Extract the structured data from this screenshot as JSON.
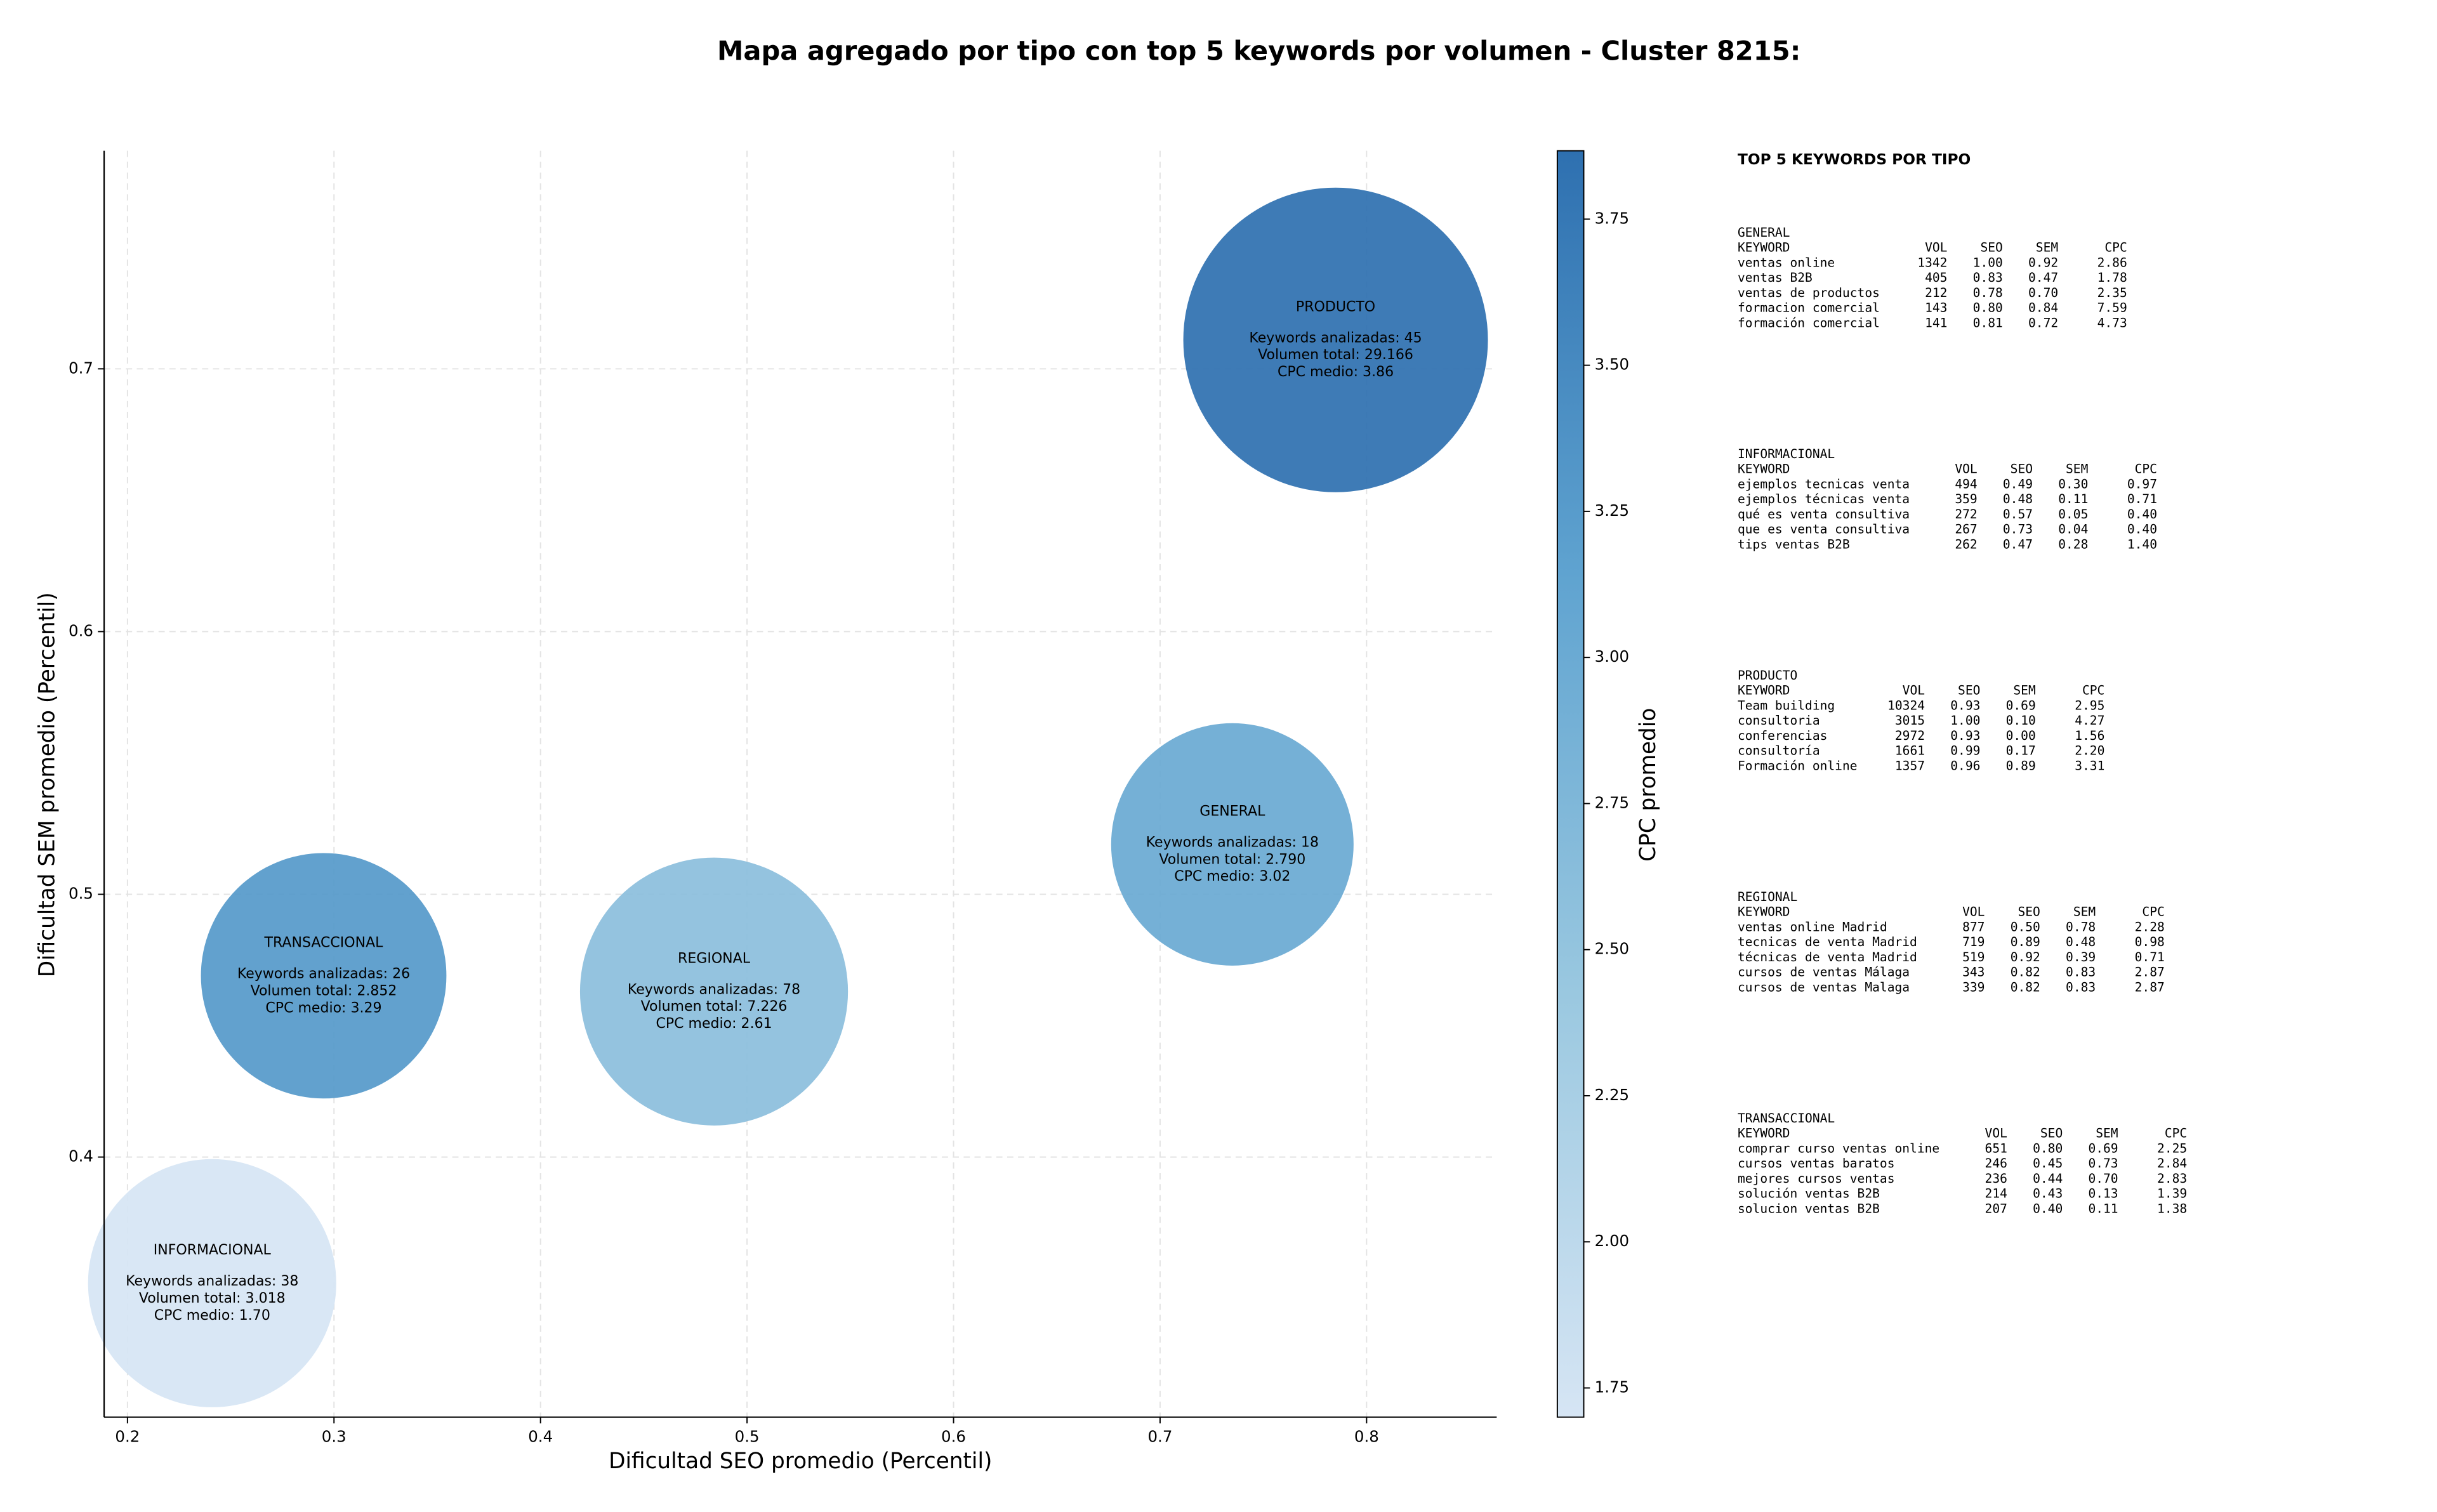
{
  "chart_data": {
    "type": "bubble",
    "title": "Mapa agregado por tipo con top 5 keywords por volumen - Cluster 8215:",
    "x_label": "Dificultad SEO promedio (Percentil)",
    "y_label": "Dificultad SEM promedio (Percentil)",
    "xlim": [
      0.1887,
      0.863
    ],
    "ylim": [
      0.301,
      0.783
    ],
    "xticks": [
      0.2,
      0.3,
      0.4,
      0.5,
      0.6,
      0.7,
      0.8
    ],
    "yticks": [
      0.4,
      0.5,
      0.6,
      0.7
    ],
    "grid": true,
    "colorbar": {
      "label": "CPC promedio",
      "clim": [
        1.7,
        3.867
      ],
      "colormap": [
        "#d6e5f4",
        "#9ac8e0",
        "#5fa3d0",
        "#2e70b0"
      ],
      "ticks": [
        1.75,
        {
          "value": 2,
          "label": "2.00"
        },
        2.25,
        {
          "value": 2.5,
          "label": "2.50"
        },
        2.75,
        {
          "value": 3,
          "label": "3.00"
        },
        3.25,
        {
          "value": 3.5,
          "label": "3.50"
        },
        3.75
      ]
    },
    "bubble_labels": {
      "keywords": "Keywords analizadas:",
      "volume": "Volumen total:",
      "cpc": "CPC medio:"
    },
    "points": [
      {
        "name": "GENERAL",
        "x": 0.735,
        "y": 0.519,
        "keywords": 18,
        "volume": 2790,
        "volume_label": "2.790",
        "cpc": 3.02
      },
      {
        "name": "INFORMACIONAL",
        "x": 0.241,
        "y": 0.352,
        "keywords": 38,
        "volume": 3018,
        "volume_label": "3.018",
        "cpc": 1.7,
        "cpc_label": "1.70"
      },
      {
        "name": "PRODUCTO",
        "x": 0.785,
        "y": 0.711,
        "keywords": 45,
        "volume": 29166,
        "volume_label": "29.166",
        "cpc": 3.86
      },
      {
        "name": "REGIONAL",
        "x": 0.484,
        "y": 0.463,
        "keywords": 78,
        "volume": 7226,
        "volume_label": "7.226",
        "cpc": 2.61
      },
      {
        "name": "TRANSACCIONAL",
        "x": 0.295,
        "y": 0.469,
        "keywords": 26,
        "volume": 2852,
        "volume_label": "2.852",
        "cpc": 3.29
      }
    ]
  },
  "keyword_tables": {
    "title": "TOP 5 KEYWORDS POR TIPO",
    "header": [
      "KEYWORD",
      "VOL",
      "SEO",
      "SEM",
      "CPC"
    ],
    "groups": [
      {
        "name": "GENERAL",
        "rows": [
          [
            "ventas online",
            1342,
            "1.00",
            "0.92",
            "2.86"
          ],
          [
            "ventas B2B",
            405,
            "0.83",
            "0.47",
            "1.78"
          ],
          [
            "ventas de productos",
            212,
            "0.78",
            "0.70",
            "2.35"
          ],
          [
            "formacion comercial",
            143,
            "0.80",
            "0.84",
            "7.59"
          ],
          [
            "formación comercial",
            141,
            "0.81",
            "0.72",
            "4.73"
          ]
        ]
      },
      {
        "name": "INFORMACIONAL",
        "rows": [
          [
            "ejemplos tecnicas venta",
            494,
            "0.49",
            "0.30",
            "0.97"
          ],
          [
            "ejemplos técnicas venta",
            359,
            "0.48",
            "0.11",
            "0.71"
          ],
          [
            "qué es venta consultiva",
            272,
            "0.57",
            "0.05",
            "0.40"
          ],
          [
            "que es venta consultiva",
            267,
            "0.73",
            "0.04",
            "0.40"
          ],
          [
            "tips ventas B2B",
            262,
            "0.47",
            "0.28",
            "1.40"
          ]
        ]
      },
      {
        "name": "PRODUCTO",
        "rows": [
          [
            "Team building",
            10324,
            "0.93",
            "0.69",
            "2.95"
          ],
          [
            "consultoria",
            3015,
            "1.00",
            "0.10",
            "4.27"
          ],
          [
            "conferencias",
            2972,
            "0.93",
            "0.00",
            "1.56"
          ],
          [
            "consultoría",
            1661,
            "0.99",
            "0.17",
            "2.20"
          ],
          [
            "Formación online",
            1357,
            "0.96",
            "0.89",
            "3.31"
          ]
        ]
      },
      {
        "name": "REGIONAL",
        "rows": [
          [
            "ventas online Madrid",
            877,
            "0.50",
            "0.78",
            "2.28"
          ],
          [
            "tecnicas de venta Madrid",
            719,
            "0.89",
            "0.48",
            "0.98"
          ],
          [
            "técnicas de venta Madrid",
            519,
            "0.92",
            "0.39",
            "0.71"
          ],
          [
            "cursos de ventas Málaga",
            343,
            "0.82",
            "0.83",
            "2.87"
          ],
          [
            "cursos de ventas Malaga",
            339,
            "0.82",
            "0.83",
            "2.87"
          ]
        ]
      },
      {
        "name": "TRANSACCIONAL",
        "rows": [
          [
            "comprar curso ventas online",
            651,
            "0.80",
            "0.69",
            "2.25"
          ],
          [
            "cursos ventas baratos",
            246,
            "0.45",
            "0.73",
            "2.84"
          ],
          [
            "mejores cursos ventas",
            236,
            "0.44",
            "0.70",
            "2.83"
          ],
          [
            "solución ventas B2B",
            214,
            "0.43",
            "0.13",
            "1.39"
          ],
          [
            "solucion ventas B2B",
            207,
            "0.40",
            "0.11",
            "1.38"
          ]
        ]
      }
    ]
  }
}
